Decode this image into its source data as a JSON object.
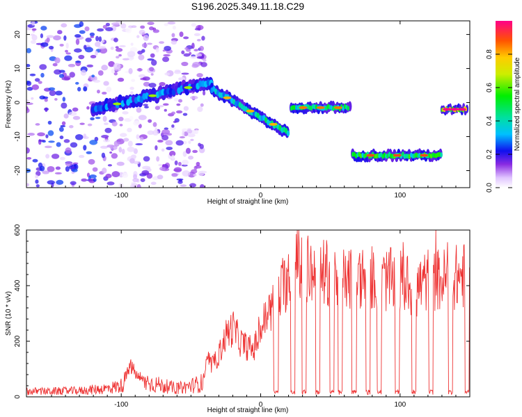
{
  "title": "S196.2025.349.11.18.C29",
  "chart_data": [
    {
      "type": "heatmap",
      "xlabel": "Height of straight line (km)",
      "ylabel": "Frequency (Hz)",
      "xlim": [
        -168,
        150
      ],
      "ylim": [
        -25,
        24
      ],
      "xticks": [
        -100,
        0,
        100
      ],
      "yticks": [
        -20,
        -10,
        0,
        10,
        20
      ],
      "colorbar": {
        "label": "Normalized spectral amplitude",
        "range": [
          0,
          1
        ],
        "ticks": [
          0,
          0.2,
          0.4,
          0.6,
          0.8
        ]
      },
      "segments": [
        {
          "name": "noise",
          "x": [
            -168,
            -40
          ],
          "note": "scattered low-amplitude blobs"
        },
        {
          "name": "rising-track",
          "x": [
            -120,
            -35
          ],
          "freq_start": -2,
          "freq_end": 6,
          "amplitude": 0.3
        },
        {
          "name": "falling-track",
          "x": [
            -35,
            20
          ],
          "freq_start": 4,
          "freq_end": -9,
          "amplitude": 0.45
        },
        {
          "name": "flat-track-1",
          "x": [
            22,
            64
          ],
          "freq": -1.5,
          "amplitude": 0.5
        },
        {
          "name": "flat-track-2",
          "x": [
            66,
            130
          ],
          "freq": -15.5,
          "amplitude": 0.55
        },
        {
          "name": "flat-track-3",
          "x": [
            130,
            148
          ],
          "freq": -2,
          "amplitude": 0.7
        }
      ]
    },
    {
      "type": "line",
      "xlabel": "Height of straight line (km)",
      "ylabel": "SNR (10 * v/v)",
      "xlim": [
        -168,
        150
      ],
      "ylim": [
        0,
        600
      ],
      "xticks": [
        -100,
        0,
        100
      ],
      "yticks": [
        0,
        200,
        400,
        600
      ],
      "series": [
        {
          "name": "SNR",
          "color": "#ee3333",
          "x": [
            -168,
            -150,
            -130,
            -110,
            -100,
            -93,
            -88,
            -80,
            -70,
            -60,
            -50,
            -42,
            -38,
            -35,
            -30,
            -25,
            -20,
            -15,
            -10,
            -5,
            0,
            5,
            10,
            15,
            20,
            25,
            30,
            40,
            50,
            60,
            70,
            80,
            90,
            100,
            110,
            120,
            130,
            140,
            150
          ],
          "y": [
            20,
            20,
            22,
            30,
            40,
            110,
            70,
            50,
            40,
            30,
            40,
            50,
            130,
            110,
            150,
            220,
            250,
            200,
            180,
            170,
            240,
            300,
            330,
            380,
            440,
            500,
            470,
            440,
            450,
            420,
            430,
            430,
            420,
            420,
            390,
            420,
            420,
            430,
            440
          ],
          "dropouts": [
            11,
            23,
            31,
            41,
            51,
            57,
            67,
            77,
            85,
            98,
            110,
            122,
            136,
            148
          ]
        }
      ]
    }
  ]
}
